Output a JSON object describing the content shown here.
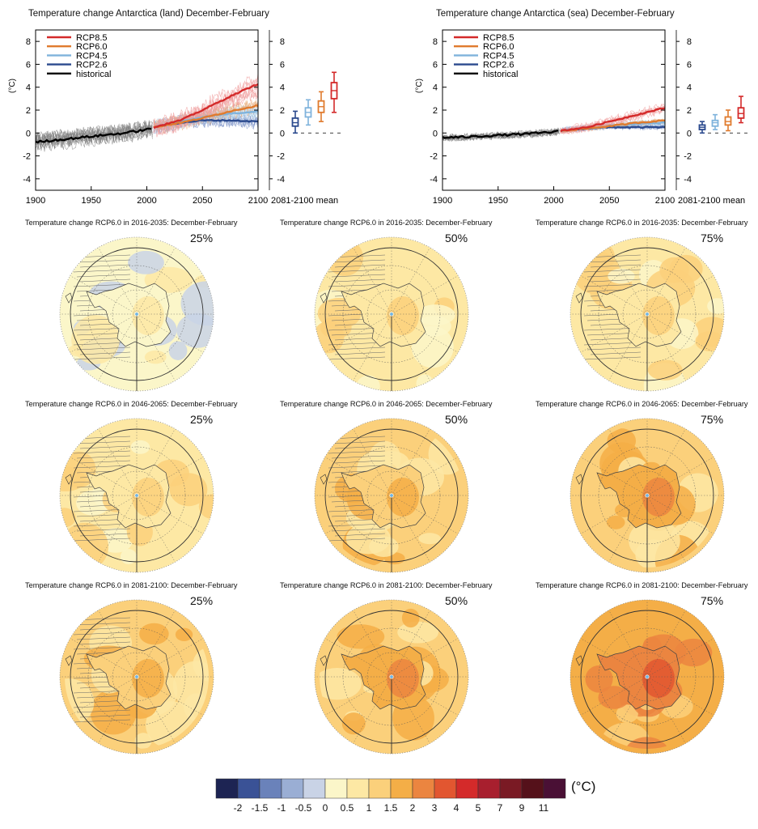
{
  "timeseries_panels": [
    {
      "title": "Temperature change Antarctica (land) December-February",
      "mean_label": "2081-2100 mean"
    },
    {
      "title": "Temperature change Antarctica (sea) December-February",
      "mean_label": "2081-2100 mean"
    }
  ],
  "legend": [
    {
      "name": "RCP8.5",
      "color": "#d42a2a"
    },
    {
      "name": "RCP6.0",
      "color": "#e07b2e"
    },
    {
      "name": "RCP4.5",
      "color": "#7fb3dc"
    },
    {
      "name": "RCP2.6",
      "color": "#2b4a8e"
    },
    {
      "name": "historical",
      "color": "#000000"
    }
  ],
  "maps": [
    {
      "title": "Temperature change RCP6.0 in 2016-2035: December-February",
      "percentile": "25%",
      "warmth": 0
    },
    {
      "title": "Temperature change RCP6.0 in 2016-2035: December-February",
      "percentile": "50%",
      "warmth": 1
    },
    {
      "title": "Temperature change RCP6.0 in 2016-2035: December-February",
      "percentile": "75%",
      "warmth": 2
    },
    {
      "title": "Temperature change RCP6.0 in 2046-2065: December-February",
      "percentile": "25%",
      "warmth": 2
    },
    {
      "title": "Temperature change RCP6.0 in 2046-2065: December-February",
      "percentile": "50%",
      "warmth": 3
    },
    {
      "title": "Temperature change RCP6.0 in 2046-2065: December-February",
      "percentile": "75%",
      "warmth": 4
    },
    {
      "title": "Temperature change RCP6.0 in 2081-2100: December-February",
      "percentile": "25%",
      "warmth": 3
    },
    {
      "title": "Temperature change RCP6.0 in 2081-2100: December-February",
      "percentile": "50%",
      "warmth": 4
    },
    {
      "title": "Temperature change RCP6.0 in 2081-2100: December-February",
      "percentile": "75%",
      "warmth": 5
    }
  ],
  "colorbar": {
    "unit": "(°C)",
    "colors": [
      "#1d2453",
      "#3a5296",
      "#6a82ba",
      "#9aaed4",
      "#c9d3e6",
      "#fbf6c9",
      "#fde8a4",
      "#fbd07b",
      "#f4ae47",
      "#eb8540",
      "#e25630",
      "#d42a2a",
      "#a81f2e",
      "#7a1a24",
      "#55111a",
      "#4a1035"
    ],
    "labels": [
      "-2",
      "-1.5",
      "-1",
      "-0.5",
      "0",
      "0.5",
      "1",
      "1.5",
      "2",
      "3",
      "4",
      "5",
      "7",
      "9",
      "11"
    ]
  },
  "chart_data": [
    {
      "type": "line",
      "title": "Temperature change Antarctica (land) December-February",
      "xlabel": "",
      "ylabel": "(°C)",
      "xlim": [
        1900,
        2100
      ],
      "ylim": [
        -5,
        9
      ],
      "x_ticks": [
        "1900",
        "1950",
        "2000",
        "2050",
        "2100"
      ],
      "y_ticks": [
        "-4",
        "-2",
        "0",
        "2",
        "4",
        "6",
        "8"
      ],
      "legend_position": "top-left",
      "series": [
        {
          "name": "historical",
          "x": [
            1900,
            1920,
            1940,
            1960,
            1980,
            2000,
            2005
          ],
          "y": [
            -0.8,
            -0.6,
            -0.4,
            -0.2,
            0.0,
            0.3,
            0.4
          ]
        },
        {
          "name": "RCP2.6",
          "x": [
            2006,
            2030,
            2050,
            2075,
            2100
          ],
          "y": [
            0.5,
            0.9,
            1.1,
            1.1,
            1.0
          ]
        },
        {
          "name": "RCP4.5",
          "x": [
            2006,
            2030,
            2050,
            2075,
            2100
          ],
          "y": [
            0.5,
            1.0,
            1.4,
            1.7,
            1.9
          ]
        },
        {
          "name": "RCP6.0",
          "x": [
            2006,
            2030,
            2050,
            2075,
            2100
          ],
          "y": [
            0.5,
            0.9,
            1.3,
            1.9,
            2.4
          ]
        },
        {
          "name": "RCP8.5",
          "x": [
            2006,
            2030,
            2050,
            2075,
            2100
          ],
          "y": [
            0.5,
            1.1,
            2.0,
            3.2,
            4.3
          ]
        }
      ],
      "boxplots_2081_2100": [
        {
          "name": "RCP2.6",
          "min": 0.0,
          "q1": 0.6,
          "median": 0.9,
          "q3": 1.3,
          "max": 1.9
        },
        {
          "name": "RCP4.5",
          "min": 0.7,
          "q1": 1.4,
          "median": 1.8,
          "q3": 2.2,
          "max": 2.9
        },
        {
          "name": "RCP6.0",
          "min": 1.0,
          "q1": 1.8,
          "median": 2.3,
          "q3": 2.8,
          "max": 3.6
        },
        {
          "name": "RCP8.5",
          "min": 1.8,
          "q1": 3.0,
          "median": 3.7,
          "q3": 4.4,
          "max": 5.3
        }
      ]
    },
    {
      "type": "line",
      "title": "Temperature change Antarctica (sea) December-February",
      "xlabel": "",
      "ylabel": "(°C)",
      "xlim": [
        1900,
        2100
      ],
      "ylim": [
        -5,
        9
      ],
      "x_ticks": [
        "1900",
        "1950",
        "2000",
        "2050",
        "2100"
      ],
      "y_ticks": [
        "-4",
        "-2",
        "0",
        "2",
        "4",
        "6",
        "8"
      ],
      "legend_position": "top-left",
      "series": [
        {
          "name": "historical",
          "x": [
            1900,
            1920,
            1940,
            1960,
            1980,
            2000,
            2005
          ],
          "y": [
            -0.4,
            -0.35,
            -0.25,
            -0.15,
            -0.05,
            0.1,
            0.15
          ]
        },
        {
          "name": "RCP2.6",
          "x": [
            2006,
            2030,
            2050,
            2075,
            2100
          ],
          "y": [
            0.2,
            0.4,
            0.5,
            0.5,
            0.5
          ]
        },
        {
          "name": "RCP4.5",
          "x": [
            2006,
            2030,
            2050,
            2075,
            2100
          ],
          "y": [
            0.2,
            0.4,
            0.6,
            0.8,
            0.9
          ]
        },
        {
          "name": "RCP6.0",
          "x": [
            2006,
            2030,
            2050,
            2075,
            2100
          ],
          "y": [
            0.2,
            0.4,
            0.6,
            0.9,
            1.1
          ]
        },
        {
          "name": "RCP8.5",
          "x": [
            2006,
            2030,
            2050,
            2075,
            2100
          ],
          "y": [
            0.2,
            0.5,
            1.0,
            1.6,
            2.2
          ]
        }
      ],
      "boxplots_2081_2100": [
        {
          "name": "RCP2.6",
          "min": 0.0,
          "q1": 0.3,
          "median": 0.5,
          "q3": 0.7,
          "max": 1.0
        },
        {
          "name": "RCP4.5",
          "min": 0.3,
          "q1": 0.6,
          "median": 0.9,
          "q3": 1.1,
          "max": 1.6
        },
        {
          "name": "RCP6.0",
          "min": 0.2,
          "q1": 0.7,
          "median": 1.0,
          "q3": 1.4,
          "max": 2.0
        },
        {
          "name": "RCP8.5",
          "min": 0.9,
          "q1": 1.3,
          "median": 1.7,
          "q3": 2.2,
          "max": 3.2
        }
      ]
    }
  ]
}
